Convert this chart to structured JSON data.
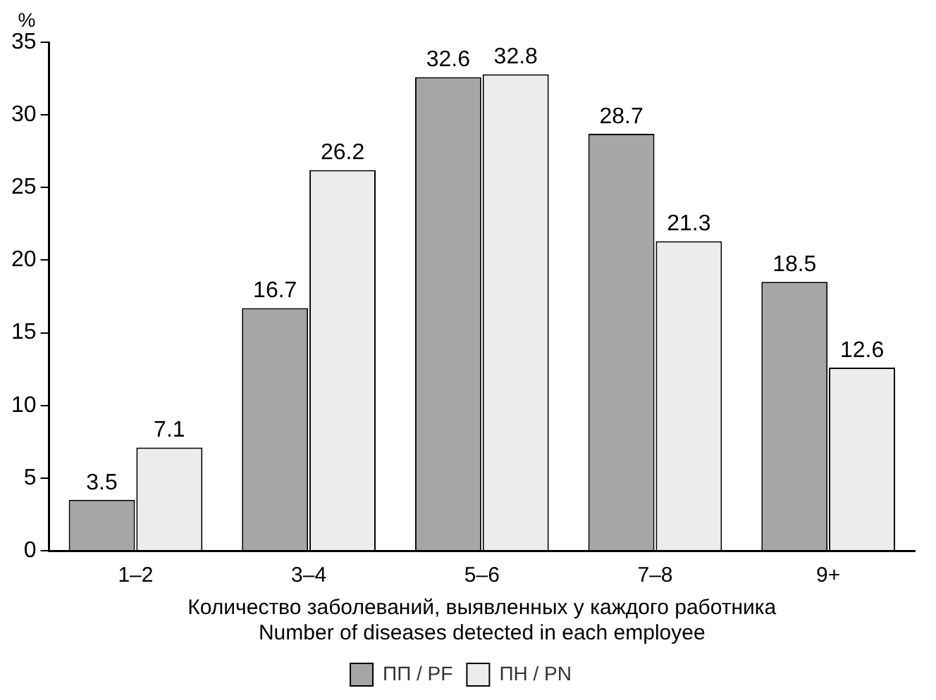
{
  "chart_data": {
    "type": "bar",
    "ylabel": "%",
    "xlabel": "Количество заболеваний, выявленных у каждого работника\nNumber of diseases detected in each employee",
    "categories": [
      "1–2",
      "3–4",
      "5–6",
      "7–8",
      "9+"
    ],
    "series": [
      {
        "name": "ПП / PF",
        "color": "#a6a6a6",
        "values": [
          3.5,
          16.7,
          32.6,
          28.7,
          18.5
        ]
      },
      {
        "name": "ПН / PN",
        "color": "#ececec",
        "values": [
          7.1,
          26.2,
          32.8,
          21.3,
          12.6
        ]
      }
    ],
    "ylim": [
      0,
      35
    ],
    "yticks": [
      0,
      5,
      10,
      15,
      20,
      25,
      30,
      35
    ],
    "grid": false,
    "legend": "bottom",
    "data_labels": true
  }
}
